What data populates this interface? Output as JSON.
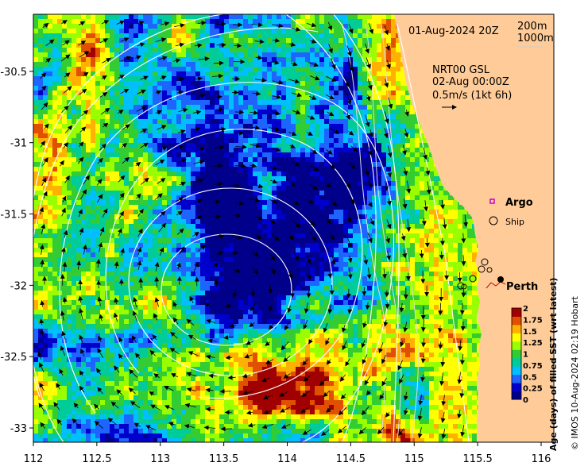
{
  "map": {
    "lon_ticks": [
      "112",
      "112.5",
      "113",
      "113.5",
      "114",
      "114.5",
      "115",
      "115.5",
      "116"
    ],
    "lat_ticks": [
      "-30.5",
      "-31",
      "-31.5",
      "-32",
      "-32.5",
      "-33"
    ],
    "lon_range": [
      112,
      116.1
    ],
    "lat_range": [
      -33.1,
      -30.1
    ],
    "land_color": "#FFCC99",
    "contour_color": "#ffffff"
  },
  "header": {
    "date": "01-Aug-2024 20Z",
    "depth_200": "200m",
    "depth_1000": "1000m"
  },
  "current_legend": {
    "product": "NRT00 GSL",
    "time": "02-Aug 00:00Z",
    "scale": "0.5m/s (1kt 6h)"
  },
  "markers": {
    "argo_label": "Argo",
    "argo_color": "#cc00cc",
    "ship_label": "Ship",
    "city_label": "Perth"
  },
  "colorbar": {
    "ticks": [
      "2",
      "1.75",
      "1.5",
      "1.25",
      "1",
      "0.75",
      "0.5",
      "0.25",
      "0"
    ],
    "title": "Age (days) of filled SST (wrt latest)",
    "colors": [
      "#00008B",
      "#0000CD",
      "#1E64FF",
      "#00BFFF",
      "#00CC99",
      "#33CC33",
      "#99FF00",
      "#FFFF00",
      "#FFB000",
      "#E05000",
      "#A00000"
    ]
  },
  "credit": "© IMOS 10-Aug-2024 02:19 Hobart"
}
